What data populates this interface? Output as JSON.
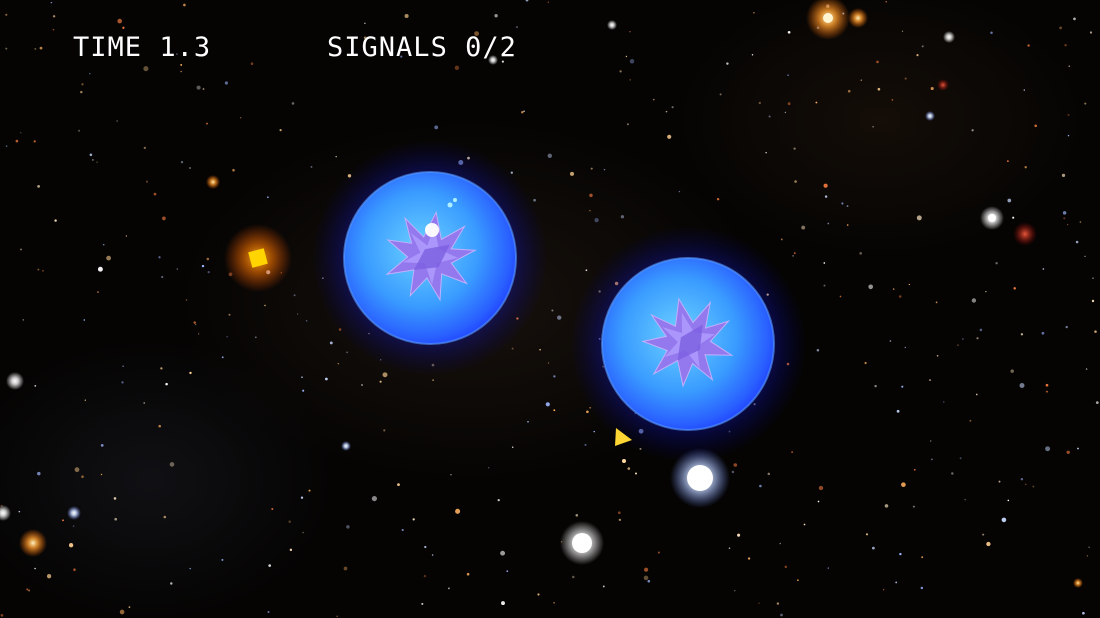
{
  "hud": {
    "time_label": "TIME",
    "time_value": "1.3",
    "signals_label": "SIGNALS",
    "signals_value": "0/2"
  },
  "colors": {
    "orb_glow": "#1a2cff",
    "orb_core": "#3fa8ff",
    "crystal": "#9a7cf0",
    "player_ship": "#ffd633",
    "beacon": "#ffcc00",
    "beacon_glow": "#ff8a00"
  },
  "icons": {
    "player": "yellow-triangle-ship",
    "beacon": "yellow-square-beacon",
    "orb": "blue-spiky-crystal-orb"
  }
}
